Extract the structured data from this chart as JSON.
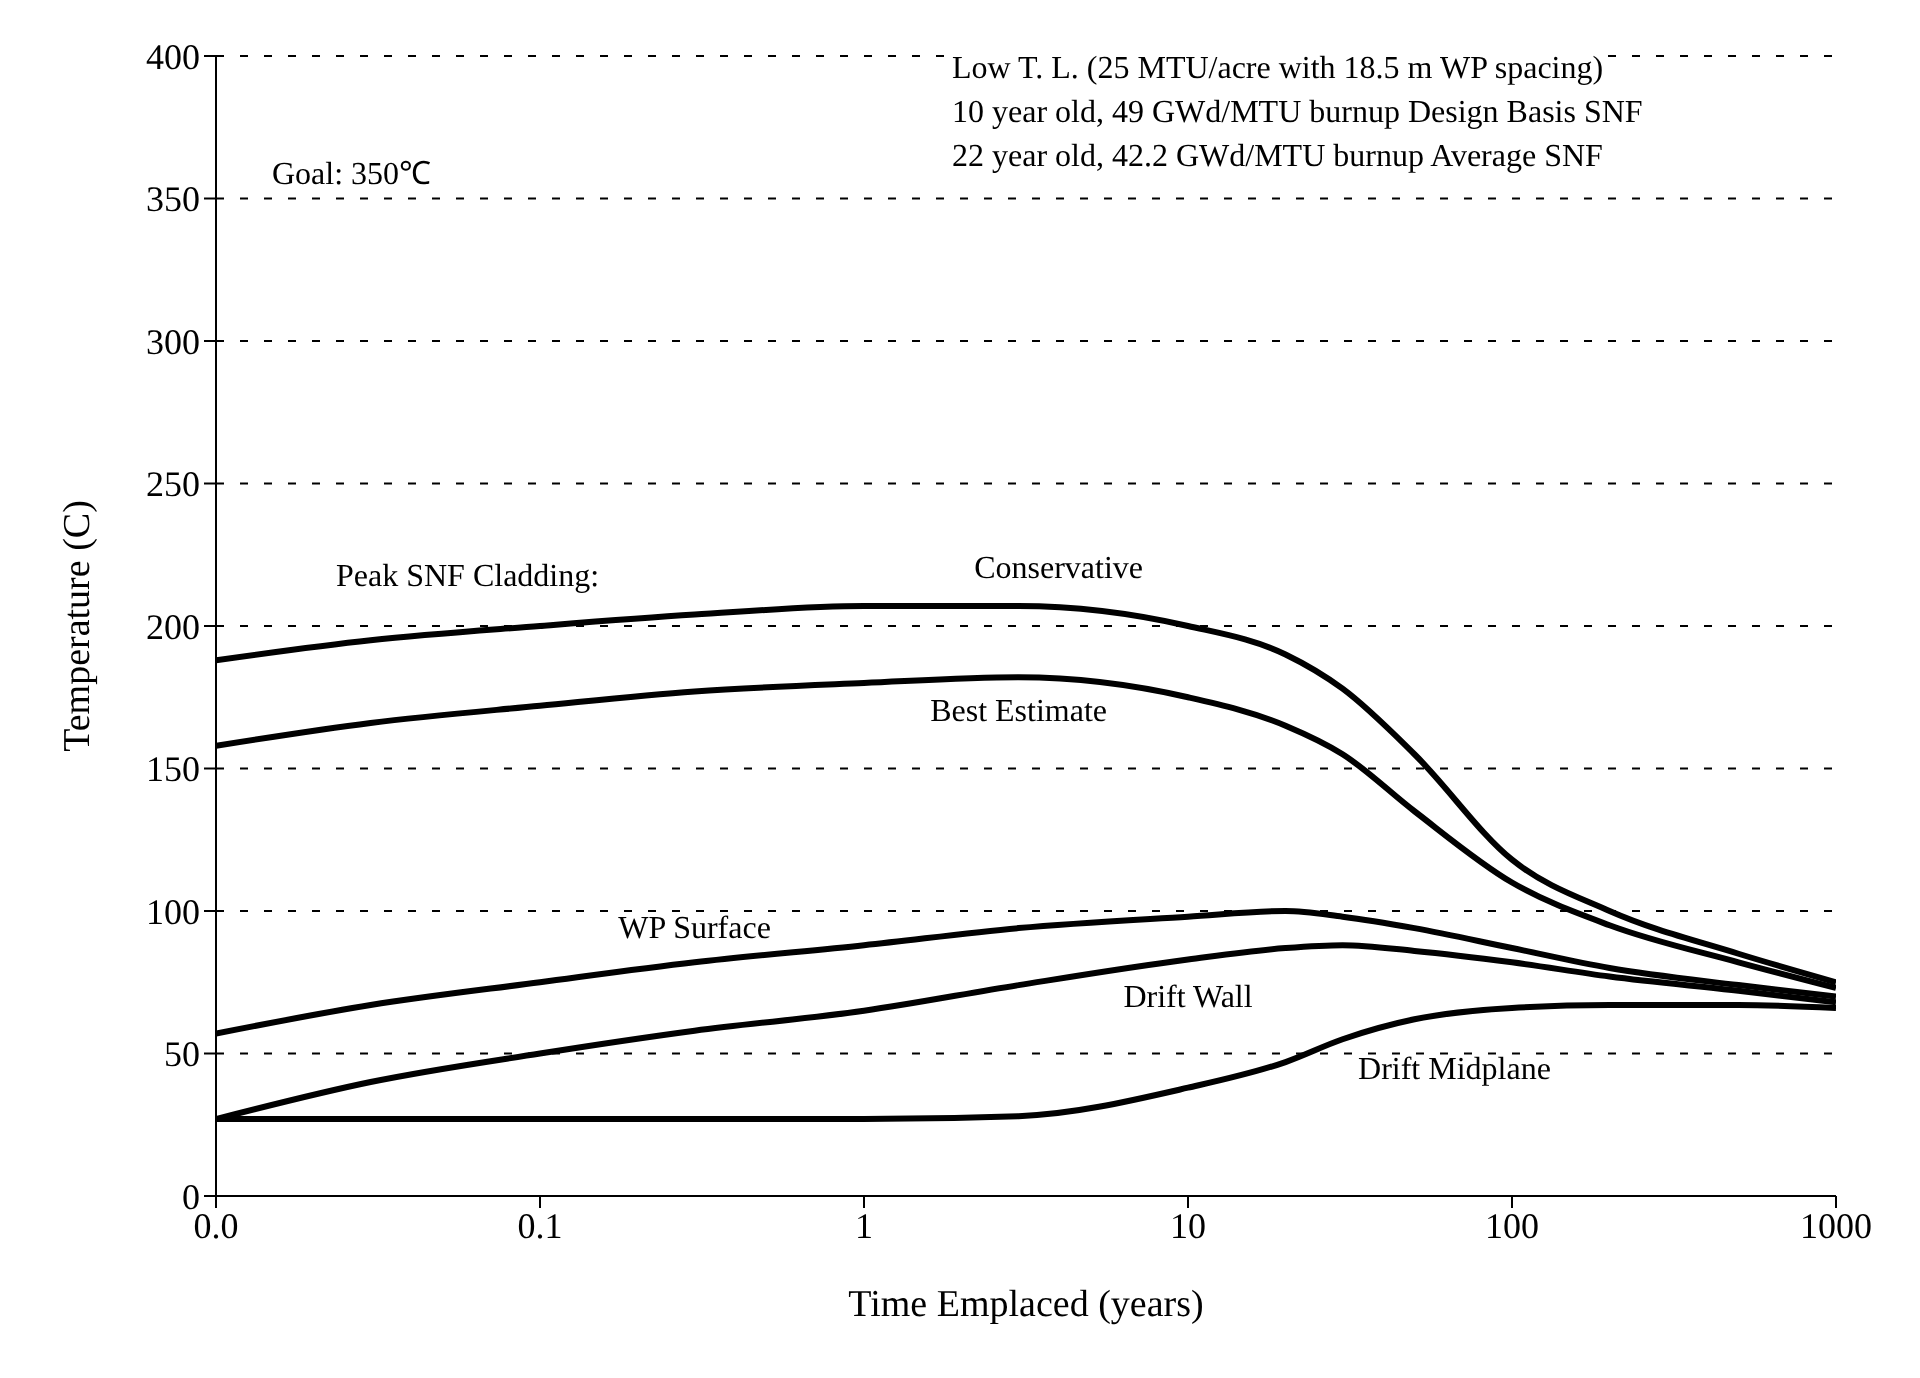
{
  "chart_data": {
    "type": "line",
    "xlabel": "Time Emplaced (years)",
    "ylabel": "Temperature (C)",
    "x": [
      0.01,
      0.03,
      0.1,
      0.3,
      1,
      3,
      10,
      20,
      30,
      50,
      100,
      200,
      500,
      1000
    ],
    "series": [
      {
        "name": "Conservative",
        "color": "#000000",
        "values": [
          188,
          195,
          200,
          204,
          207,
          207,
          200,
          190,
          178,
          155,
          118,
          100,
          85,
          75
        ]
      },
      {
        "name": "Best Estimate",
        "color": "#000000",
        "values": [
          158,
          166,
          172,
          177,
          180,
          182,
          175,
          165,
          155,
          135,
          110,
          95,
          82,
          73
        ]
      },
      {
        "name": "WP Surface",
        "color": "#000000",
        "values": [
          57,
          67,
          75,
          82,
          88,
          94,
          98,
          100,
          98,
          94,
          87,
          80,
          74,
          70
        ]
      },
      {
        "name": "Drift Wall",
        "color": "#000000",
        "values": [
          27,
          40,
          50,
          58,
          65,
          74,
          83,
          87,
          88,
          86,
          82,
          77,
          72,
          68
        ]
      },
      {
        "name": "Drift Midplane",
        "color": "#000000",
        "values": [
          27,
          27,
          27,
          27,
          27,
          28,
          38,
          47,
          55,
          62,
          66,
          67,
          67,
          66
        ]
      }
    ],
    "log": "x",
    "xlim": [
      0.01,
      1000
    ],
    "xticks": [
      {
        "value": 0.01,
        "label": "0.0"
      },
      0.1,
      1,
      10,
      100,
      1000
    ],
    "ylim": [
      0,
      400
    ],
    "yticks": [
      0,
      50,
      100,
      150,
      200,
      250,
      300,
      350,
      400
    ],
    "grid": "y",
    "legend": false,
    "marker": "none",
    "line_style": "solid",
    "annotations": [
      "Peak SNF Cladding:",
      "Goal: 350℃",
      "Low T. L. (25 MTU/acre with 18.5 m WP spacing)",
      "10 year old, 49 GWd/MTU burnup Design Basis SNF",
      "22 year old, 42.2 GWd/MTU burnup Average SNF"
    ]
  }
}
